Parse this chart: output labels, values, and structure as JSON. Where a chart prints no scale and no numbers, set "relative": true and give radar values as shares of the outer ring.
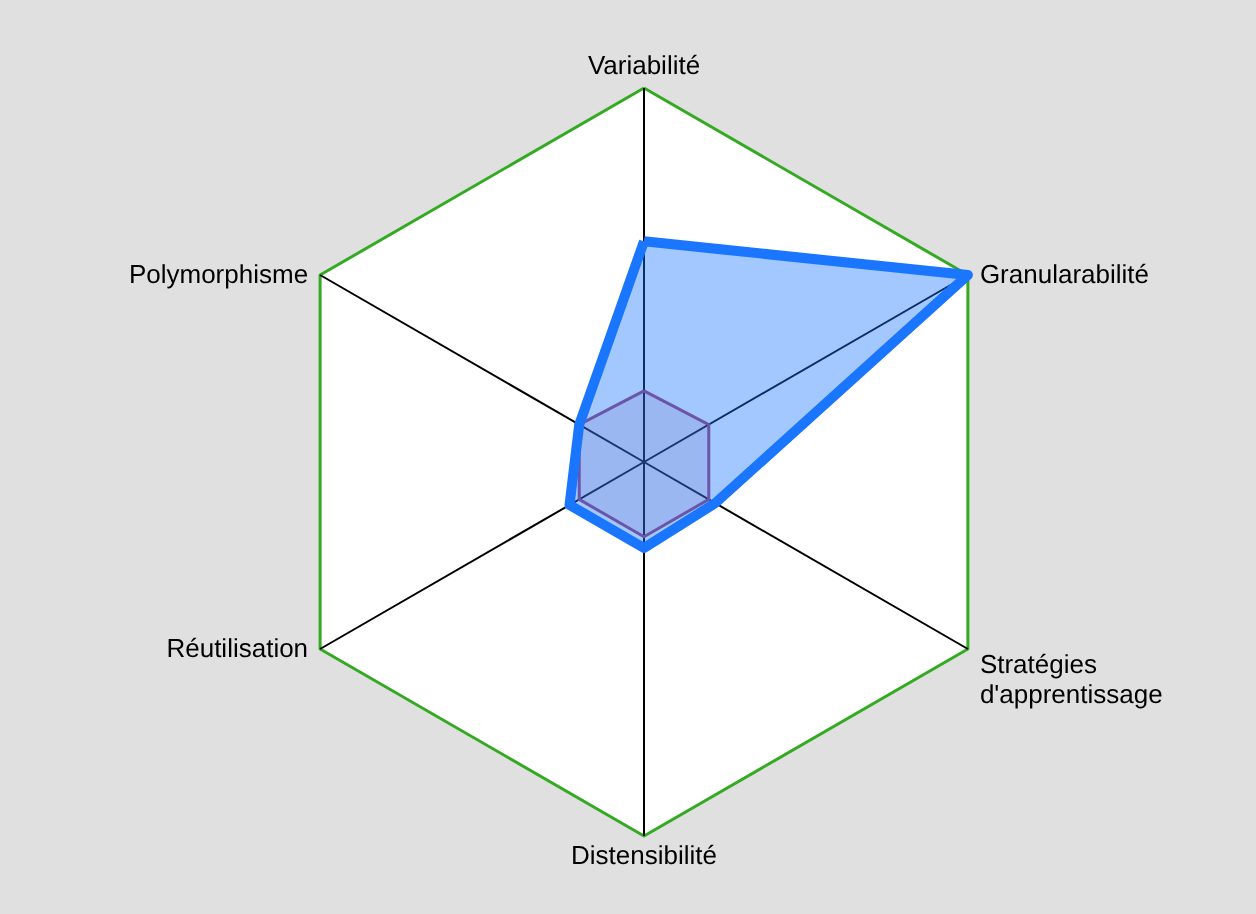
{
  "chart_data": {
    "type": "radar",
    "relative": true,
    "grid": true,
    "categories": [
      "Variabilité",
      "Granularabilité",
      "Stratégies d'apprentissage",
      "Distensibilité",
      "Réutilisation",
      "Polymorphisme"
    ],
    "series": [
      {
        "color": "#1a75ff",
        "values": [
          0.59,
          1.0,
          0.22,
          0.23,
          0.23,
          0.2
        ]
      },
      {
        "color": "#a04070",
        "values": [
          0.19,
          0.2,
          0.2,
          0.2,
          0.2,
          0.2
        ]
      }
    ]
  }
}
